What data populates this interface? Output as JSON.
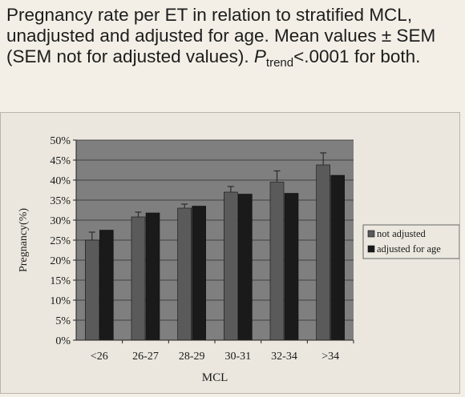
{
  "caption": {
    "main": "Pregnancy rate per ET in relation to stratified MCL, unadjusted and adjusted for age. Mean values ± SEM (SEM not for adjusted values). ",
    "p_symbol": "P",
    "p_subscript": "trend",
    "p_rest": "<.0001 for both."
  },
  "colors": {
    "plot_background": "#7f7f7f",
    "not_adjusted": "#5a5a5a",
    "adjusted_for_age": "#1a1a1a",
    "error_bar": "#2a2a2a"
  },
  "chart_data": {
    "type": "bar",
    "xlabel": "MCL",
    "ylabel": "Pregnancy(%)",
    "ylim": [
      0,
      50
    ],
    "ytick_step": 5,
    "yticks": [
      "0%",
      "5%",
      "10%",
      "15%",
      "20%",
      "25%",
      "30%",
      "35%",
      "40%",
      "45%",
      "50%"
    ],
    "grid": true,
    "legend_position": "right",
    "categories": [
      "<26",
      "26-27",
      "28-29",
      "30-31",
      "32-34",
      ">34"
    ],
    "series": [
      {
        "name": "not adjusted",
        "values": [
          25.0,
          30.8,
          33.0,
          37.0,
          39.5,
          43.8
        ],
        "error": [
          2.0,
          1.2,
          1.0,
          1.4,
          2.8,
          3.0
        ]
      },
      {
        "name": "adjusted for age",
        "values": [
          27.5,
          31.8,
          33.5,
          36.5,
          36.7,
          41.2
        ]
      }
    ]
  }
}
